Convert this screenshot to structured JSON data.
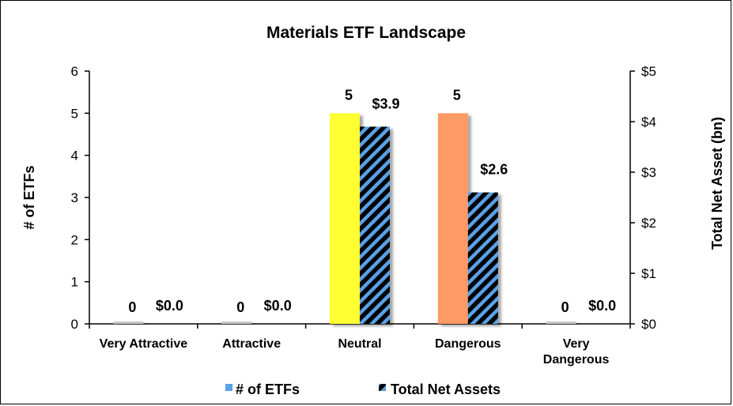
{
  "chart_data": {
    "type": "bar",
    "title": "Materials ETF Landscape",
    "categories": [
      "Very Attractive",
      "Attractive",
      "Neutral",
      "Dangerous",
      "Very Dangerous"
    ],
    "category_lines": [
      [
        "Very Attractive"
      ],
      [
        "Attractive"
      ],
      [
        "Neutral"
      ],
      [
        "Dangerous"
      ],
      [
        "Very",
        "Dangerous"
      ]
    ],
    "series": [
      {
        "name": "# of ETFs",
        "axis": "left",
        "values": [
          0,
          0,
          5,
          5,
          0
        ],
        "data_labels": [
          "0",
          "0",
          "5",
          "5",
          "0"
        ],
        "colors": [
          "#c8c8c8",
          "#c8c8c8",
          "#ffff33",
          "#ff9966",
          "#c8c8c8"
        ],
        "legend_color": "#5aa0e6"
      },
      {
        "name": "Total Net Assets",
        "axis": "right",
        "values": [
          0.0,
          0.0,
          3.9,
          2.6,
          0.0
        ],
        "data_labels": [
          "$0.0",
          "$0.0",
          "$3.9",
          "$2.6",
          "$0.0"
        ],
        "fill_pattern": "hatch",
        "colors": [
          "#5aa0e6",
          "#000000"
        ]
      }
    ],
    "y_left": {
      "label": "# of ETFs",
      "lim": [
        0,
        6
      ],
      "ticks": [
        "0",
        "1",
        "2",
        "3",
        "4",
        "5",
        "6"
      ]
    },
    "y_right": {
      "label": "Total Net Asset (bn)",
      "lim": [
        0,
        5
      ],
      "ticks": [
        "$0",
        "$1",
        "$2",
        "$3",
        "$4",
        "$5"
      ]
    },
    "grid": false,
    "legend_position": "bottom"
  }
}
